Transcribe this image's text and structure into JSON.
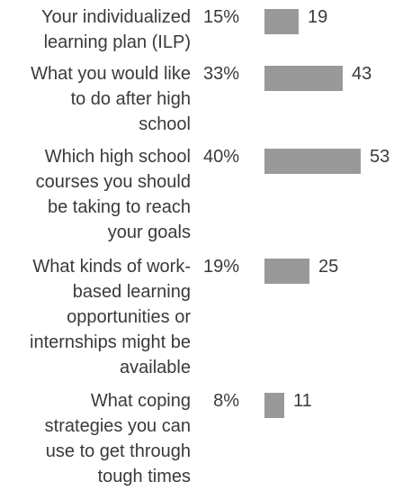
{
  "chart_data": {
    "type": "bar",
    "orientation": "horizontal",
    "categories": [
      "Your individualized\nlearning plan (ILP)",
      "What you would like\nto do after high\nschool",
      "Which high school\ncourses you should\nbe taking to reach\nyour goals",
      "What kinds of work-\nbased learning\nopportunities or\ninternships might be\navailable",
      "What coping\nstrategies you can\nuse to get through\ntough times"
    ],
    "percentages": [
      "15%",
      "33%",
      "40%",
      "19%",
      "8%"
    ],
    "values": [
      19,
      43,
      53,
      25,
      11
    ],
    "bar_color": "#999999"
  }
}
